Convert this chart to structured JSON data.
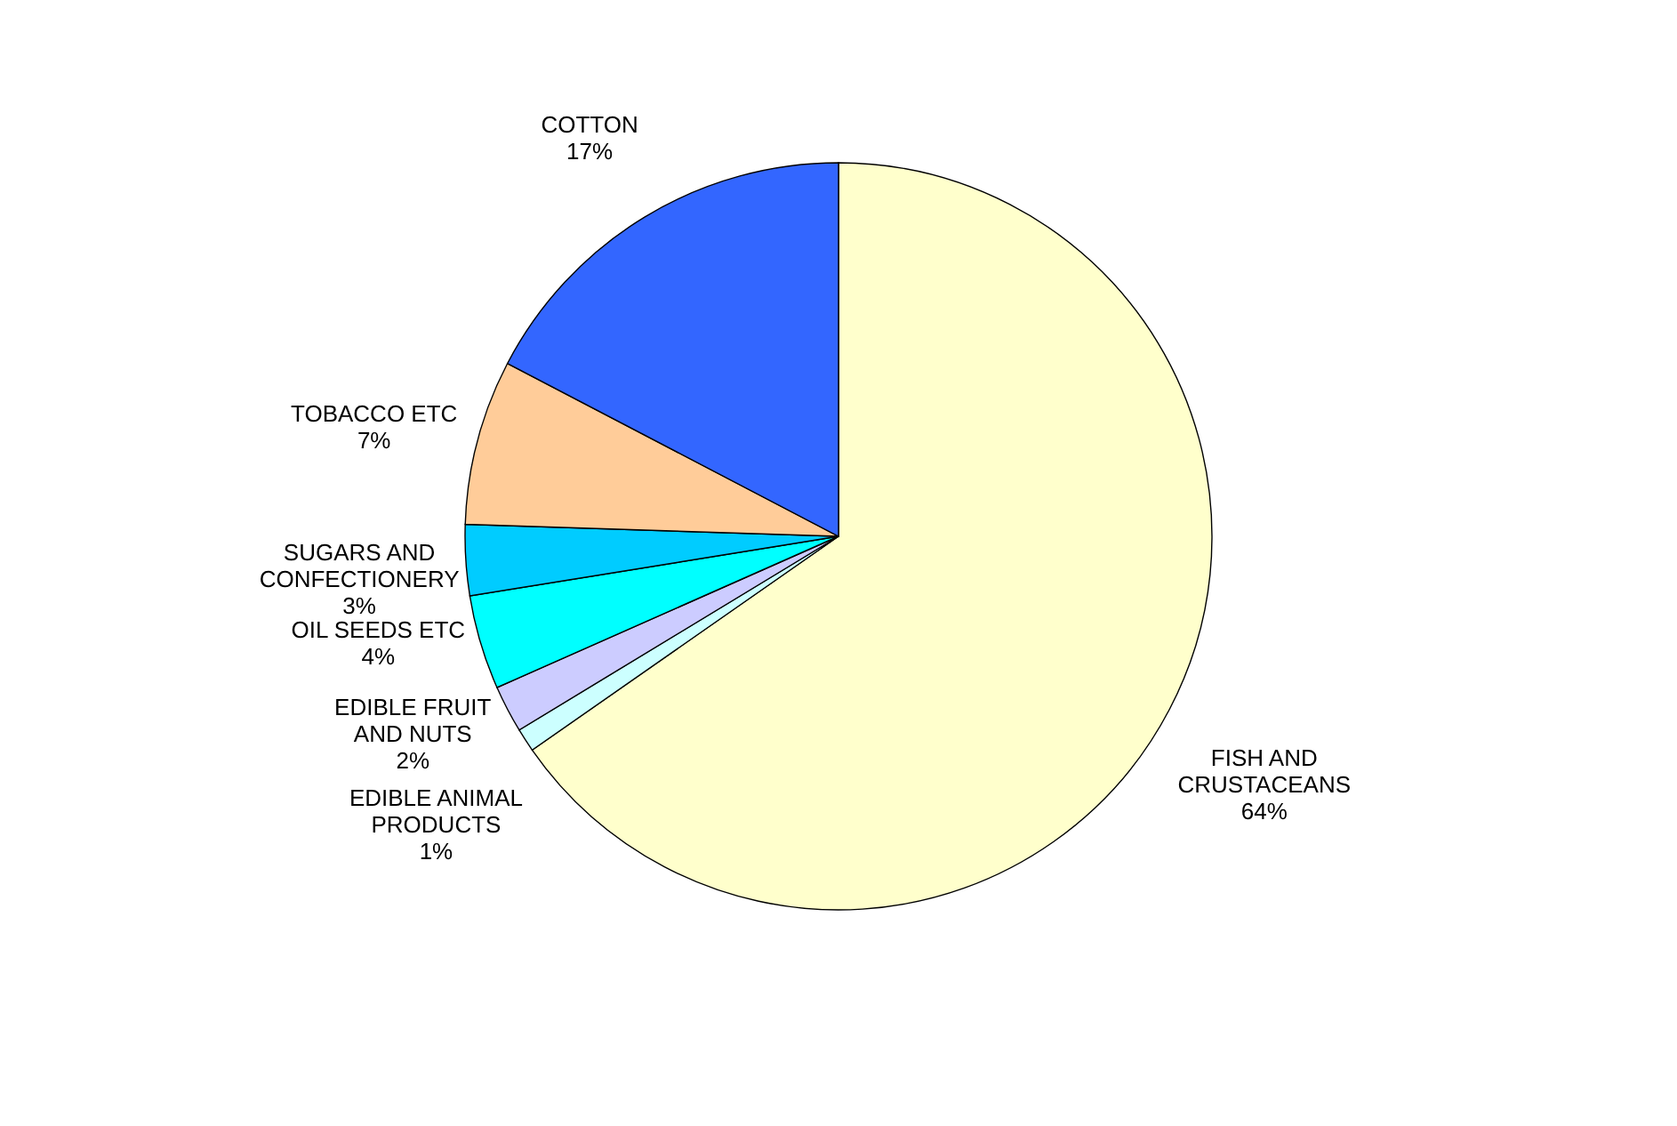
{
  "chart_data": {
    "type": "pie",
    "categories": [
      "FISH AND CRUSTACEANS",
      "EDIBLE ANIMAL PRODUCTS",
      "EDIBLE FRUIT AND NUTS",
      "OIL SEEDS ETC",
      "SUGARS AND CONFECTIONERY",
      "TOBACCO ETC",
      "COTTON"
    ],
    "values": [
      64,
      1,
      2,
      4,
      3,
      7,
      17
    ],
    "value_labels": [
      "64%",
      "1%",
      "2%",
      "4%",
      "3%",
      "7%",
      "17%"
    ],
    "colors": [
      "#ffffcc",
      "#ccffff",
      "#ccccff",
      "#00ffff",
      "#00ccff",
      "#ffcc99",
      "#3366ff"
    ]
  }
}
